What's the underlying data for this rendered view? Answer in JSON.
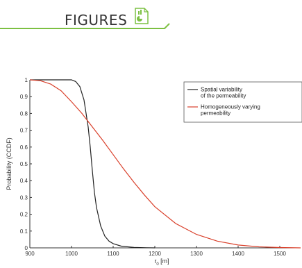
{
  "header": {
    "title": "FIGURES",
    "icon": "document-chart-icon",
    "accent_color": "#7cc042"
  },
  "chart_data": {
    "type": "line",
    "xlabel": "r_0 [m]",
    "ylabel": "Probability (CCDF)",
    "xlim": [
      900,
      1550
    ],
    "ylim": [
      0,
      1
    ],
    "x_ticks": [
      900,
      1000,
      1100,
      1200,
      1300,
      1400,
      1500
    ],
    "y_ticks": [
      0,
      0.1,
      0.2,
      0.3,
      0.4,
      0.5,
      0.6,
      0.7,
      0.8,
      0.9,
      1
    ],
    "legend_position": "top-right",
    "grid": false,
    "series": [
      {
        "name": "Spatial variability of the permeability",
        "color": "#222222",
        "x": [
          900,
          980,
          1000,
          1010,
          1020,
          1030,
          1040,
          1045,
          1050,
          1055,
          1060,
          1070,
          1080,
          1090,
          1100,
          1120,
          1150,
          1180,
          1200
        ],
        "y": [
          1.0,
          1.0,
          1.0,
          0.99,
          0.96,
          0.88,
          0.72,
          0.6,
          0.46,
          0.33,
          0.24,
          0.13,
          0.07,
          0.04,
          0.025,
          0.01,
          0.003,
          0.001,
          0.0
        ]
      },
      {
        "name": "Homogeneously varying permeability",
        "color": "#d9402b",
        "x": [
          900,
          925,
          950,
          975,
          1000,
          1025,
          1050,
          1075,
          1100,
          1125,
          1150,
          1175,
          1200,
          1250,
          1300,
          1350,
          1400,
          1450,
          1500,
          1550
        ],
        "y": [
          1.0,
          0.995,
          0.975,
          0.935,
          0.87,
          0.8,
          0.72,
          0.64,
          0.555,
          0.47,
          0.39,
          0.315,
          0.245,
          0.145,
          0.08,
          0.04,
          0.017,
          0.006,
          0.002,
          0.0
        ]
      }
    ]
  }
}
